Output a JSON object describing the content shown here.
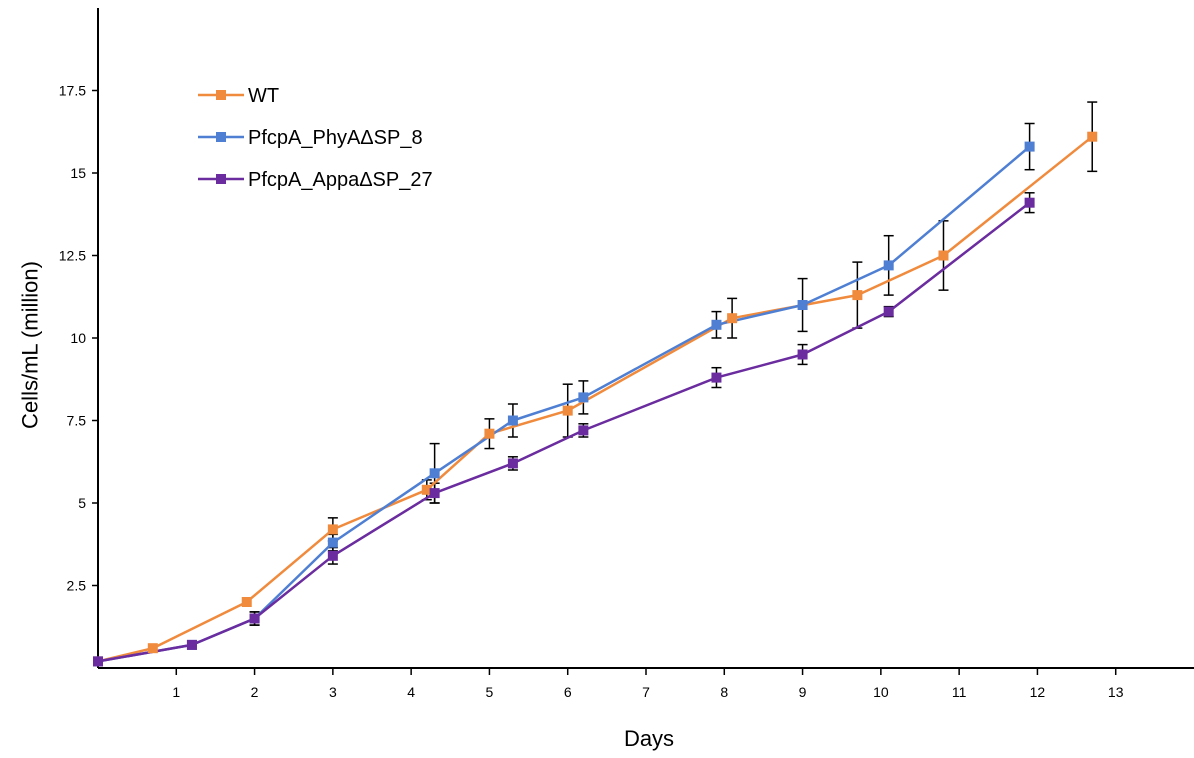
{
  "chart_data": {
    "type": "line",
    "title": "",
    "xlabel": "Days",
    "ylabel": "Cells/mL (million)",
    "xlim": [
      0,
      14
    ],
    "ylim": [
      0,
      20
    ],
    "x_ticks": [
      1,
      2,
      3,
      4,
      5,
      6,
      7,
      8,
      9,
      10,
      11,
      12,
      13
    ],
    "y_ticks": [
      2.5,
      5,
      7.5,
      10,
      12.5,
      15,
      17.5
    ],
    "y_tick_labels": [
      "2.5",
      "5",
      "7.5",
      "10",
      "12.5",
      "15",
      "17.5"
    ],
    "grid": false,
    "legend_position": "top-left",
    "series": [
      {
        "name": "WT",
        "color": "#f08a3c",
        "marker": "square",
        "x": [
          0.0,
          0.7,
          1.9,
          3.0,
          4.2,
          5.0,
          6.0,
          8.1,
          9.7,
          10.8,
          12.7
        ],
        "y": [
          0.2,
          0.6,
          2.0,
          4.2,
          5.4,
          7.1,
          7.8,
          10.6,
          11.3,
          12.5,
          16.1
        ],
        "err": [
          0.0,
          0.0,
          0.0,
          0.35,
          0.3,
          0.45,
          0.8,
          0.6,
          1.0,
          1.05,
          1.05
        ]
      },
      {
        "name": "PfcpA_PhyAΔSP_8",
        "color": "#4f7fd3",
        "marker": "square",
        "x": [
          0.0,
          1.2,
          2.0,
          3.0,
          4.3,
          5.3,
          6.2,
          7.9,
          9.0,
          10.1,
          11.9
        ],
        "y": [
          0.2,
          0.7,
          1.5,
          3.8,
          5.9,
          7.5,
          8.2,
          10.4,
          11.0,
          12.2,
          15.8
        ],
        "err": [
          0.0,
          0.0,
          0.2,
          0.25,
          0.9,
          0.5,
          0.5,
          0.4,
          0.8,
          0.9,
          0.7
        ]
      },
      {
        "name": "PfcpA_AppaΔSP_27",
        "color": "#6a2c9e",
        "marker": "square",
        "x": [
          0.0,
          1.2,
          2.0,
          3.0,
          4.3,
          5.3,
          6.2,
          7.9,
          9.0,
          10.1,
          11.9
        ],
        "y": [
          0.2,
          0.7,
          1.5,
          3.4,
          5.3,
          6.2,
          7.2,
          8.8,
          9.5,
          10.8,
          14.1
        ],
        "err": [
          0.0,
          0.0,
          0.2,
          0.25,
          0.3,
          0.2,
          0.2,
          0.3,
          0.3,
          0.15,
          0.3
        ]
      }
    ]
  }
}
